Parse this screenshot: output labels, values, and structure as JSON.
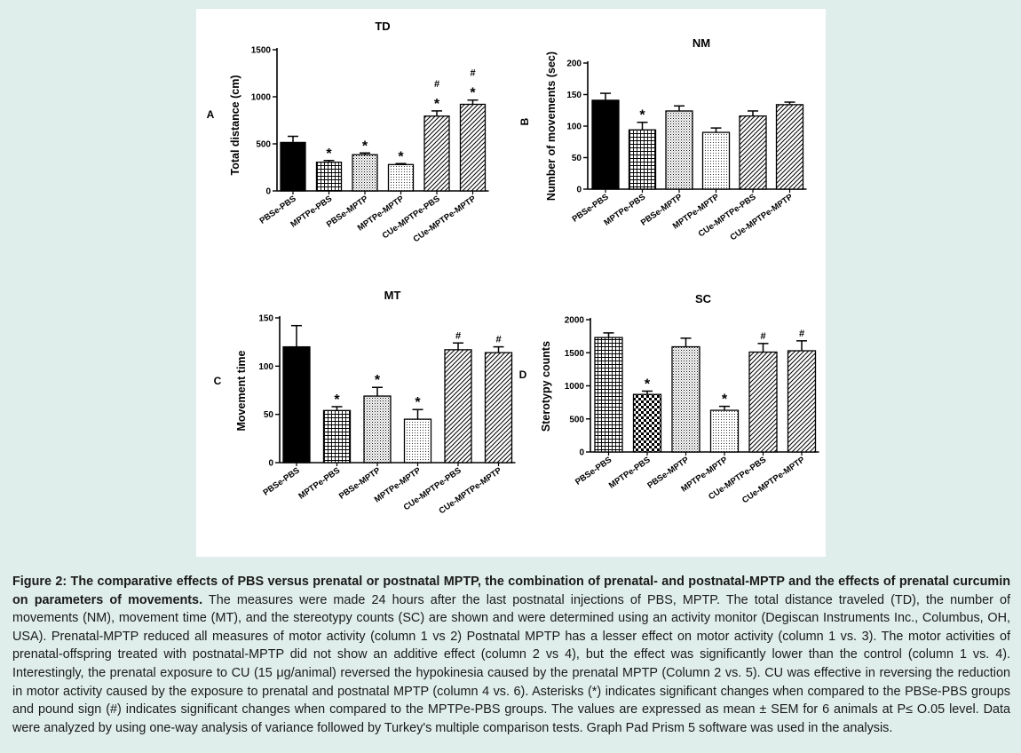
{
  "figure": {
    "background": "#ffffff",
    "page_background": "#dfeeea",
    "pattern_names": [
      "solid-black",
      "grid",
      "dots",
      "fine-dots",
      "diagonal",
      "diagonal",
      "checker"
    ]
  },
  "chart_data": [
    {
      "type": "bar",
      "panel": "A",
      "title": "TD",
      "xlabel": "",
      "ylabel": "Total distance (cm)",
      "ylim": [
        0,
        1500
      ],
      "yticks": [
        "0",
        "500",
        "1000",
        "1500"
      ],
      "ytick_values": [
        0,
        500,
        1000,
        1500
      ],
      "categories": [
        "PBSe-PBS",
        "MPTPe-PBS",
        "PBSe-MPTP",
        "MPTPe-MPTP",
        "CUe-MPTPe-PBS",
        "CUe-MPTPe-MPTP"
      ],
      "values": [
        515,
        305,
        385,
        280,
        795,
        920
      ],
      "errors": [
        65,
        18,
        18,
        10,
        55,
        45
      ],
      "patterns": [
        "solid-black",
        "grid",
        "dots",
        "fine-dots",
        "diagonal",
        "diagonal"
      ],
      "stars": [
        "",
        "*",
        "*",
        "*",
        "*",
        "*"
      ],
      "hashes": [
        "",
        "",
        "",
        "",
        "#",
        "#"
      ]
    },
    {
      "type": "bar",
      "panel": "B",
      "title": "NM",
      "xlabel": "",
      "ylabel": "Number of movements (sec)",
      "ylim": [
        0,
        200
      ],
      "yticks": [
        "0",
        "50",
        "100",
        "150",
        "200"
      ],
      "ytick_values": [
        0,
        50,
        100,
        150,
        200
      ],
      "categories": [
        "PBSe-PBS",
        "MPTPe-PBS",
        "PBSe-MPTP",
        "MPTPe-MPTP",
        "CUe-MPTPe-PBS",
        "CUe-MPTPe-MPTP"
      ],
      "values": [
        141,
        94,
        124,
        90,
        116,
        134
      ],
      "errors": [
        11,
        12,
        8,
        7,
        8,
        4
      ],
      "patterns": [
        "solid-black",
        "grid",
        "dots",
        "fine-dots",
        "diagonal",
        "diagonal"
      ],
      "stars": [
        "",
        "*",
        "",
        "",
        "",
        ""
      ],
      "hashes": [
        "",
        "",
        "",
        "",
        "",
        ""
      ]
    },
    {
      "type": "bar",
      "panel": "C",
      "title": "MT",
      "xlabel": "",
      "ylabel": "Movement time",
      "ylim": [
        0,
        150
      ],
      "yticks": [
        "0",
        "50",
        "100",
        "150"
      ],
      "ytick_values": [
        0,
        50,
        100,
        150
      ],
      "categories": [
        "PBSe-PBS",
        "MPTPe-PBS",
        "PBSe-MPTP",
        "MPTPe-MPTP",
        "CUe-MPTPe-PBS",
        "CUe-MPTPe-MPTP"
      ],
      "values": [
        120,
        54,
        69,
        45,
        117,
        114
      ],
      "errors": [
        22,
        4,
        9,
        10,
        7,
        6
      ],
      "patterns": [
        "solid-black",
        "grid",
        "dots",
        "fine-dots",
        "diagonal",
        "diagonal"
      ],
      "stars": [
        "",
        "*",
        "*",
        "*",
        "",
        ""
      ],
      "hashes": [
        "",
        "",
        "",
        "",
        "#",
        "#"
      ]
    },
    {
      "type": "bar",
      "panel": "D",
      "title": "SC",
      "xlabel": "",
      "ylabel": "Sterotypy counts",
      "ylim": [
        0,
        2000
      ],
      "yticks": [
        "0",
        "500",
        "1000",
        "1500",
        "2000"
      ],
      "ytick_values": [
        0,
        500,
        1000,
        1500,
        2000
      ],
      "categories": [
        "PBSe-PBS",
        "MPTPe-PBS",
        "PBSe-MPTP",
        "MPTPe-MPTP",
        "CUe-MPTPe-PBS",
        "CUe-MPTPe-MPTP"
      ],
      "values": [
        1730,
        870,
        1590,
        630,
        1510,
        1530
      ],
      "errors": [
        70,
        50,
        130,
        60,
        130,
        150
      ],
      "patterns": [
        "grid",
        "checker",
        "dots",
        "fine-dots",
        "diagonal",
        "diagonal"
      ],
      "stars": [
        "",
        "*",
        "",
        "*",
        "",
        ""
      ],
      "hashes": [
        "",
        "",
        "",
        "",
        "#",
        "#"
      ]
    }
  ],
  "caption": {
    "bold": "Figure 2: The comparative effects of PBS versus prenatal or postnatal MPTP, the combination of prenatal- and postnatal-MPTP and the effects of prenatal curcumin on parameters of movements.",
    "text": " The measures were made 24 hours after the last postnatal injections of PBS, MPTP. The total distance traveled (TD), the number of movements (NM), movement time (MT), and the stereotypy counts (SC) are shown and were determined using an activity monitor (Degiscan Instruments Inc., Columbus, OH, USA). Prenatal-MPTP reduced all measures of motor activity (column 1 vs 2) Postnatal MPTP has a lesser effect on motor activity (column 1 vs. 3). The motor activities of prenatal-offspring treated with postnatal-MPTP did not show an additive effect (column 2 vs 4), but the effect was significantly lower than the control (column 1 vs. 4). Interestingly, the prenatal exposure to CU (15 μg/animal) reversed the hypokinesia caused by the prenatal MPTP (Column 2 vs. 5). CU was effective in reversing the reduction in motor activity caused by the exposure to prenatal and postnatal MPTP (column 4 vs. 6). Asterisks (*) indicates significant changes when compared to the PBSe-PBS groups and pound sign (#) indicates significant changes when compared to the MPTPe-PBS groups. The values are expressed as mean ± SEM for 6 animals at P≤ O.05 level. Data were analyzed by using one-way analysis of variance followed by Turkey's multiple comparison tests. Graph Pad Prism 5 software was used in the analysis."
  }
}
